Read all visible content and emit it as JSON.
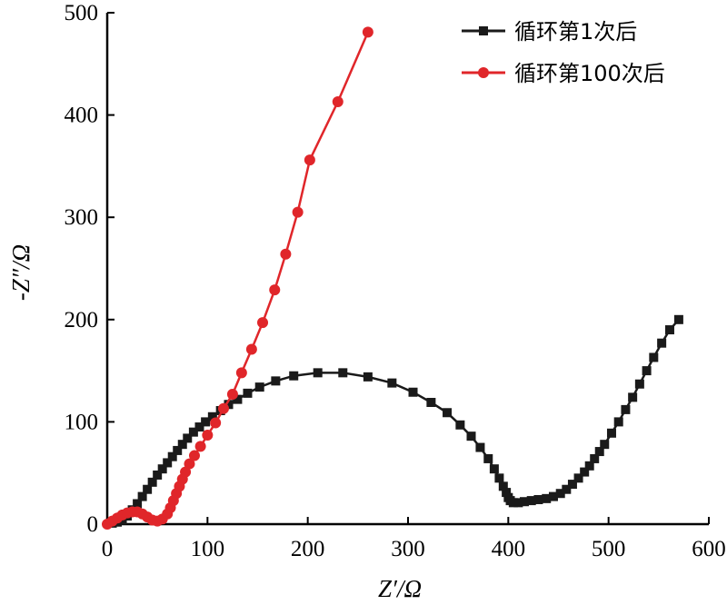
{
  "chart_data": {
    "type": "scatter",
    "title": "",
    "xlabel": "Z′/Ω",
    "ylabel": "-Z″/Ω",
    "xlim": [
      0,
      600
    ],
    "ylim": [
      0,
      500
    ],
    "xticks": [
      0,
      100,
      200,
      300,
      400,
      500,
      600
    ],
    "yticks": [
      0,
      100,
      200,
      300,
      400,
      500
    ],
    "grid": false,
    "legend": "top-right",
    "series": [
      {
        "name": "循环第1次后",
        "color": "#1a1a1a",
        "marker": "square",
        "points": [
          [
            5,
            1
          ],
          [
            10,
            2
          ],
          [
            15,
            4
          ],
          [
            20,
            8
          ],
          [
            25,
            14
          ],
          [
            30,
            20
          ],
          [
            35,
            27
          ],
          [
            40,
            34
          ],
          [
            45,
            41
          ],
          [
            50,
            48
          ],
          [
            55,
            54
          ],
          [
            60,
            60
          ],
          [
            65,
            66
          ],
          [
            70,
            72
          ],
          [
            75,
            78
          ],
          [
            80,
            84
          ],
          [
            86,
            90
          ],
          [
            92,
            95
          ],
          [
            98,
            100
          ],
          [
            105,
            105
          ],
          [
            113,
            111
          ],
          [
            121,
            117
          ],
          [
            130,
            122
          ],
          [
            140,
            128
          ],
          [
            152,
            134
          ],
          [
            168,
            140
          ],
          [
            186,
            145
          ],
          [
            210,
            148
          ],
          [
            235,
            148
          ],
          [
            260,
            144
          ],
          [
            284,
            138
          ],
          [
            305,
            129
          ],
          [
            323,
            119
          ],
          [
            339,
            109
          ],
          [
            352,
            97
          ],
          [
            363,
            86
          ],
          [
            372,
            75
          ],
          [
            380,
            64
          ],
          [
            386,
            54
          ],
          [
            391,
            45
          ],
          [
            395,
            37
          ],
          [
            398,
            31
          ],
          [
            400,
            26
          ],
          [
            402,
            23
          ],
          [
            405,
            21
          ],
          [
            410,
            21
          ],
          [
            416,
            22
          ],
          [
            423,
            23
          ],
          [
            430,
            24
          ],
          [
            438,
            25
          ],
          [
            445,
            27
          ],
          [
            452,
            30
          ],
          [
            458,
            34
          ],
          [
            464,
            39
          ],
          [
            470,
            45
          ],
          [
            476,
            51
          ],
          [
            481,
            57
          ],
          [
            486,
            64
          ],
          [
            491,
            71
          ],
          [
            496,
            78
          ],
          [
            503,
            89
          ],
          [
            510,
            100
          ],
          [
            517,
            112
          ],
          [
            524,
            124
          ],
          [
            531,
            137
          ],
          [
            538,
            150
          ],
          [
            545,
            163
          ],
          [
            553,
            177
          ],
          [
            561,
            190
          ],
          [
            570,
            200
          ]
        ]
      },
      {
        "name": "循环第100次后",
        "color": "#e0262a",
        "marker": "circle",
        "points": [
          [
            0,
            0
          ],
          [
            5,
            3
          ],
          [
            10,
            6
          ],
          [
            15,
            9
          ],
          [
            20,
            11
          ],
          [
            25,
            12
          ],
          [
            30,
            12
          ],
          [
            35,
            10
          ],
          [
            40,
            7
          ],
          [
            45,
            4
          ],
          [
            50,
            3
          ],
          [
            55,
            5
          ],
          [
            60,
            10
          ],
          [
            63,
            16
          ],
          [
            66,
            23
          ],
          [
            69,
            30
          ],
          [
            72,
            37
          ],
          [
            75,
            44
          ],
          [
            78,
            51
          ],
          [
            82,
            59
          ],
          [
            87,
            67
          ],
          [
            93,
            76
          ],
          [
            100,
            87
          ],
          [
            108,
            99
          ],
          [
            116,
            113
          ],
          [
            125,
            127
          ],
          [
            134,
            148
          ],
          [
            144,
            171
          ],
          [
            155,
            197
          ],
          [
            167,
            229
          ],
          [
            178,
            264
          ],
          [
            190,
            305
          ],
          [
            202,
            356
          ],
          [
            230,
            413
          ],
          [
            260,
            481
          ]
        ]
      }
    ]
  }
}
